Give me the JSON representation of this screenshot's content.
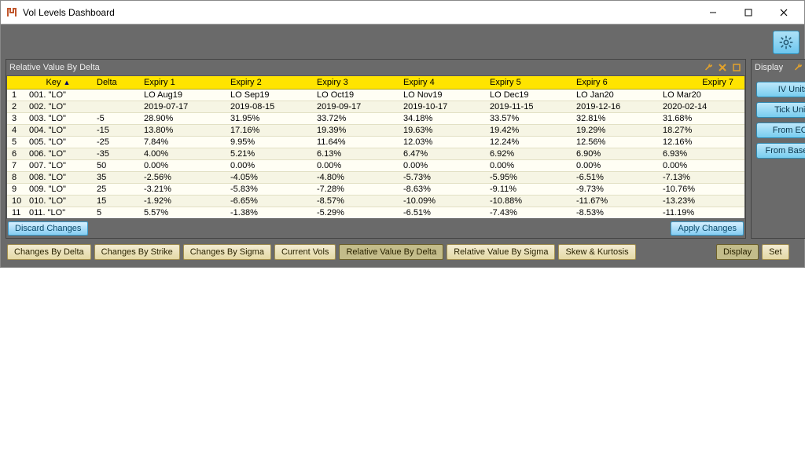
{
  "window": {
    "title": "Vol Levels Dashboard"
  },
  "panel_main": {
    "title": "Relative Value By Delta",
    "discard_label": "Discard Changes",
    "apply_label": "Apply Changes"
  },
  "panel_side": {
    "title": "Display"
  },
  "table": {
    "headers": {
      "key": "Key",
      "sort_indicator": "▲",
      "delta": "Delta",
      "exp1": "Expiry 1",
      "exp2": "Expiry 2",
      "exp3": "Expiry 3",
      "exp4": "Expiry 4",
      "exp5": "Expiry 5",
      "exp6": "Expiry 6",
      "exp7": "Expiry 7"
    },
    "rows": [
      {
        "n": "1",
        "key": "001. \"LO\"",
        "delta": "",
        "e": [
          "LO Aug19",
          "LO Sep19",
          "LO Oct19",
          "LO Nov19",
          "LO Dec19",
          "LO Jan20",
          "LO Mar20"
        ]
      },
      {
        "n": "2",
        "key": "002. \"LO\"",
        "delta": "",
        "e": [
          "2019-07-17",
          "2019-08-15",
          "2019-09-17",
          "2019-10-17",
          "2019-11-15",
          "2019-12-16",
          "2020-02-14"
        ]
      },
      {
        "n": "3",
        "key": "003. \"LO\"",
        "delta": "-5",
        "e": [
          "28.90%",
          "31.95%",
          "33.72%",
          "34.18%",
          "33.57%",
          "32.81%",
          "31.68%"
        ]
      },
      {
        "n": "4",
        "key": "004. \"LO\"",
        "delta": "-15",
        "e": [
          "13.80%",
          "17.16%",
          "19.39%",
          "19.63%",
          "19.42%",
          "19.29%",
          "18.27%"
        ]
      },
      {
        "n": "5",
        "key": "005. \"LO\"",
        "delta": "-25",
        "e": [
          "7.84%",
          "9.95%",
          "11.64%",
          "12.03%",
          "12.24%",
          "12.56%",
          "12.16%"
        ]
      },
      {
        "n": "6",
        "key": "006. \"LO\"",
        "delta": "-35",
        "e": [
          "4.00%",
          "5.21%",
          "6.13%",
          "6.47%",
          "6.92%",
          "6.90%",
          "6.93%"
        ]
      },
      {
        "n": "7",
        "key": "007. \"LO\"",
        "delta": "50",
        "e": [
          "0.00%",
          "0.00%",
          "0.00%",
          "0.00%",
          "0.00%",
          "0.00%",
          "0.00%"
        ]
      },
      {
        "n": "8",
        "key": "008. \"LO\"",
        "delta": "35",
        "e": [
          "-2.56%",
          "-4.05%",
          "-4.80%",
          "-5.73%",
          "-5.95%",
          "-6.51%",
          "-7.13%"
        ]
      },
      {
        "n": "9",
        "key": "009. \"LO\"",
        "delta": "25",
        "e": [
          "-3.21%",
          "-5.83%",
          "-7.28%",
          "-8.63%",
          "-9.11%",
          "-9.73%",
          "-10.76%"
        ]
      },
      {
        "n": "10",
        "key": "010. \"LO\"",
        "delta": "15",
        "e": [
          "-1.92%",
          "-6.65%",
          "-8.57%",
          "-10.09%",
          "-10.88%",
          "-11.67%",
          "-13.23%"
        ]
      },
      {
        "n": "11",
        "key": "011. \"LO\"",
        "delta": "5",
        "e": [
          "5.57%",
          "-1.38%",
          "-5.29%",
          "-6.51%",
          "-7.43%",
          "-8.53%",
          "-11.19%"
        ]
      }
    ]
  },
  "tabs": {
    "items": [
      "Changes By Delta",
      "Changes By Strike",
      "Changes By Sigma",
      "Current Vols",
      "Relative Value By Delta",
      "Relative Value By Sigma",
      "Skew & Kurtosis"
    ],
    "active_index": 4
  },
  "side_buttons": [
    "IV Units",
    "Tick Units",
    "From EOD",
    "From Baseline"
  ],
  "side_tabs": {
    "items": [
      "Display",
      "Set"
    ],
    "active_index": 0
  }
}
